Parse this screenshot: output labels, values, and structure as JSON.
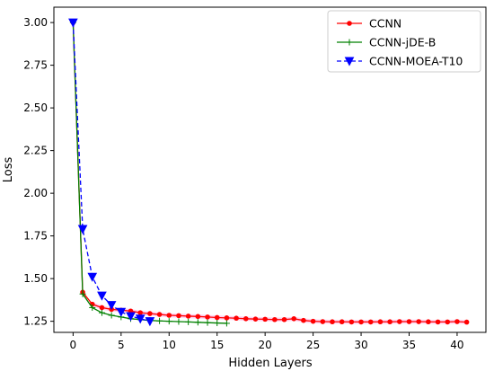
{
  "chart_data": {
    "type": "line",
    "title": "",
    "xlabel": "Hidden Layers",
    "ylabel": "Loss",
    "xlim": [
      -2,
      43
    ],
    "ylim": [
      1.185,
      3.09
    ],
    "xticks": [
      0,
      5,
      10,
      15,
      20,
      25,
      30,
      35,
      40
    ],
    "yticks": [
      1.25,
      1.5,
      1.75,
      2.0,
      2.25,
      2.5,
      2.75,
      3.0
    ],
    "ytick_labels": [
      "1.25",
      "1.50",
      "1.75",
      "2.00",
      "2.25",
      "2.50",
      "2.75",
      "3.00"
    ],
    "grid": false,
    "legend_position": "upper right",
    "series": [
      {
        "name": "CCNN",
        "color": "#ff0000",
        "line_style": "solid",
        "marker": "circle",
        "x": [
          0,
          1,
          2,
          3,
          4,
          5,
          6,
          7,
          8,
          9,
          10,
          11,
          12,
          13,
          14,
          15,
          16,
          17,
          18,
          19,
          20,
          21,
          22,
          23,
          24,
          25,
          26,
          27,
          28,
          29,
          30,
          31,
          32,
          33,
          34,
          35,
          36,
          37,
          38,
          39,
          40,
          41
        ],
        "y": [
          3.0,
          1.42,
          1.35,
          1.33,
          1.32,
          1.315,
          1.31,
          1.3,
          1.295,
          1.29,
          1.285,
          1.283,
          1.28,
          1.278,
          1.275,
          1.272,
          1.27,
          1.268,
          1.265,
          1.263,
          1.262,
          1.26,
          1.26,
          1.265,
          1.255,
          1.25,
          1.248,
          1.247,
          1.247,
          1.246,
          1.246,
          1.246,
          1.247,
          1.247,
          1.248,
          1.248,
          1.248,
          1.247,
          1.246,
          1.246,
          1.248,
          1.245
        ],
        "band": 0.012
      },
      {
        "name": "CCNN-jDE-B",
        "color": "#008000",
        "line_style": "solid",
        "marker": "plus",
        "x": [
          0,
          1,
          2,
          3,
          4,
          5,
          6,
          7,
          8,
          9,
          10,
          11,
          12,
          13,
          14,
          15,
          16
        ],
        "y": [
          3.0,
          1.41,
          1.33,
          1.3,
          1.285,
          1.275,
          1.265,
          1.26,
          1.255,
          1.252,
          1.25,
          1.248,
          1.246,
          1.244,
          1.242,
          1.24,
          1.238
        ]
      },
      {
        "name": "CCNN-MOEA-T10",
        "color": "#0000ff",
        "line_style": "dashed",
        "marker": "triangle-down",
        "x": [
          0,
          1,
          2,
          3,
          4,
          5,
          6,
          7,
          8
        ],
        "y": [
          3.0,
          1.79,
          1.51,
          1.4,
          1.345,
          1.305,
          1.28,
          1.265,
          1.25
        ]
      }
    ]
  }
}
